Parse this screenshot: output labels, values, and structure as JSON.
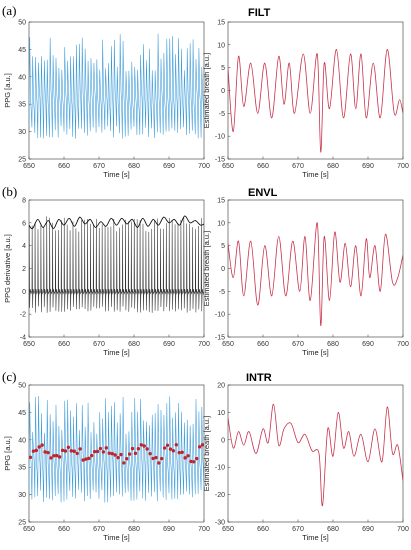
{
  "chart_data": [
    {
      "panel": "(a)",
      "title": "FILT",
      "type": "line",
      "xlabel": "Time [s]",
      "ylabel": "PPG [a.u.]",
      "xlim": [
        650,
        700
      ],
      "ylim": [
        25,
        50
      ],
      "xticks": [
        "650",
        "660",
        "670",
        "680",
        "690",
        "700"
      ],
      "yticks": [
        "25",
        "30",
        "35",
        "40",
        "45",
        "50"
      ],
      "series": [
        {
          "kind": "ppg",
          "color": "#3a9ad9",
          "beats_per_sec": 1.2,
          "mean": 36.5,
          "peak_range": [
            41,
            48
          ],
          "trough_range": [
            28.5,
            31
          ]
        }
      ]
    },
    {
      "panel": "",
      "title": "",
      "type": "line",
      "xlabel": "Time [s]",
      "ylabel": "Estimated breath [a.u.]",
      "xlim": [
        650,
        700
      ],
      "ylim": [
        -15,
        15
      ],
      "xticks": [
        "650",
        "660",
        "670",
        "680",
        "690",
        "700"
      ],
      "yticks": [
        "-15",
        "-10",
        "-5",
        "0",
        "5",
        "10",
        "15"
      ],
      "series": [
        {
          "kind": "breath",
          "color": "#c8324b",
          "x": [
            650,
            651.5,
            653,
            654.5,
            656.5,
            658.5,
            660.5,
            662.5,
            664.5,
            666,
            667.5,
            669,
            671.5,
            673.5,
            675.5,
            676.5,
            677.5,
            679,
            681,
            683,
            685,
            686.5,
            688,
            689.5,
            691.5,
            693.5,
            695.5,
            697.5,
            699,
            700
          ],
          "y": [
            5,
            -9,
            7.5,
            -3.5,
            6,
            -5,
            6,
            -6,
            7.5,
            -3,
            6,
            -5,
            8,
            -5,
            8,
            -13.5,
            6,
            -4,
            9,
            -6,
            8,
            -4,
            8,
            -6,
            6,
            -6,
            9,
            -5,
            -2,
            -5
          ]
        }
      ]
    },
    {
      "panel": "(b)",
      "title": "ENVL",
      "type": "line",
      "xlabel": "Time [s]",
      "ylabel": "PPG derivative [a.u.]",
      "xlim": [
        650,
        700
      ],
      "ylim": [
        -4,
        8
      ],
      "xticks": [
        "650",
        "660",
        "670",
        "680",
        "690",
        "700"
      ],
      "yticks": [
        "-4",
        "-2",
        "0",
        "2",
        "4",
        "6",
        "8"
      ],
      "series": [
        {
          "kind": "derivative",
          "color": "#333333",
          "beats_per_sec": 1.2,
          "peak_range": [
            5.2,
            6.6
          ],
          "trough_range": [
            -1.9,
            -1.3
          ]
        },
        {
          "kind": "envelope",
          "color": "#111111",
          "x": [
            650,
            651,
            652.5,
            654,
            655.5,
            657,
            658.5,
            660,
            661.5,
            663,
            664.5,
            666,
            667.5,
            669,
            670.5,
            672,
            673.5,
            675,
            676.5,
            678,
            679.5,
            681,
            682.5,
            684,
            685.5,
            687,
            688.5,
            690,
            691.5,
            693,
            694.5,
            696,
            697.5,
            699,
            700
          ],
          "y": [
            5.8,
            5.5,
            6.3,
            5.6,
            6.2,
            5.5,
            6.3,
            5.8,
            6.4,
            5.7,
            6.5,
            5.9,
            6.3,
            5.6,
            6.1,
            5.7,
            6.4,
            5.8,
            6.4,
            5.9,
            6.3,
            5.6,
            6.4,
            5.7,
            6.3,
            5.8,
            6.5,
            6.0,
            6.3,
            5.8,
            6.6,
            6.0,
            6.2,
            5.8,
            5.9
          ]
        }
      ]
    },
    {
      "panel": "",
      "title": "",
      "type": "line",
      "xlabel": "Time [s]",
      "ylabel": "Estimated breath [a.u.]",
      "xlim": [
        650,
        700
      ],
      "ylim": [
        -15,
        15
      ],
      "xticks": [
        "650",
        "660",
        "670",
        "680",
        "690",
        "700"
      ],
      "yticks": [
        "-15",
        "-10",
        "-5",
        "0",
        "5",
        "10",
        "15"
      ],
      "series": [
        {
          "kind": "breath",
          "color": "#c8324b",
          "x": [
            650,
            651.5,
            653,
            654.5,
            656.5,
            658.5,
            660.5,
            662.5,
            664.5,
            666.5,
            668.5,
            670.5,
            672,
            673.5,
            675.5,
            676.5,
            677.5,
            679,
            680.5,
            682,
            683.5,
            685,
            686.5,
            688,
            689.5,
            690.5,
            692,
            693.5,
            695,
            697,
            698.5,
            700
          ],
          "y": [
            5.5,
            -2,
            6,
            -6,
            6,
            -8,
            5,
            -6,
            7,
            -6,
            6,
            -5,
            7,
            -7,
            10,
            -12.5,
            7,
            -7,
            8,
            -3,
            5.5,
            -4,
            5,
            -6,
            6.5,
            -2,
            5,
            -5,
            7.5,
            -3,
            -2,
            3
          ]
        }
      ]
    },
    {
      "panel": "(c)",
      "title": "INTR",
      "type": "line",
      "xlabel": "Time [s]",
      "ylabel": "PPG [a.u.]",
      "xlim": [
        650,
        700
      ],
      "ylim": [
        25,
        50
      ],
      "xticks": [
        "650",
        "660",
        "670",
        "680",
        "690",
        "700"
      ],
      "yticks": [
        "25",
        "30",
        "35",
        "40",
        "45",
        "50"
      ],
      "series": [
        {
          "kind": "ppg",
          "color": "#3a9ad9",
          "beats_per_sec": 1.2,
          "mean": 36.5,
          "peak_range": [
            41,
            48
          ],
          "trough_range": [
            28.5,
            31
          ]
        },
        {
          "kind": "markers",
          "color": "#c0242c",
          "beats_per_sec": 1.2,
          "mean": 37.5,
          "spread": 1.8
        }
      ]
    },
    {
      "panel": "",
      "title": "",
      "type": "line",
      "xlabel": "Time [s]",
      "ylabel": "Estimated breath [a.u.]",
      "xlim": [
        650,
        700
      ],
      "ylim": [
        -30,
        20
      ],
      "xticks": [
        "650",
        "660",
        "670",
        "680",
        "690",
        "700"
      ],
      "yticks": [
        "-30",
        "-20",
        "-10",
        "0",
        "10",
        "20"
      ],
      "series": [
        {
          "kind": "breath",
          "color": "#c8324b",
          "x": [
            650,
            651.5,
            653,
            654.5,
            656,
            658,
            660,
            661.5,
            663,
            664.5,
            666,
            668,
            670,
            672,
            674,
            676,
            677,
            678.5,
            680,
            681.5,
            683,
            684.5,
            686,
            688,
            690,
            692,
            694,
            695.5,
            697,
            698.5,
            700
          ],
          "y": [
            8,
            -3,
            3,
            -2,
            3,
            -5,
            4,
            -1,
            13,
            -2,
            4,
            6,
            -1,
            2,
            -4,
            -5,
            -24,
            4,
            -6,
            10,
            -3,
            3,
            -6,
            2,
            -8,
            4,
            -8,
            12,
            -5,
            -2,
            -15
          ]
        }
      ]
    }
  ]
}
